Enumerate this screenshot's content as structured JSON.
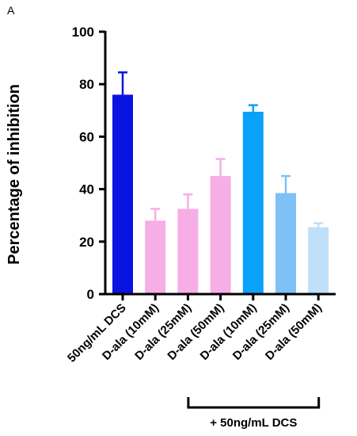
{
  "panel_label": "A",
  "chart_data": {
    "type": "bar",
    "title": "",
    "xlabel": "",
    "ylabel": "Percentage of inhibition",
    "ylim": [
      0,
      100
    ],
    "yticks": [
      "0",
      "20",
      "40",
      "60",
      "80",
      "100"
    ],
    "grid": false,
    "categories": [
      "50ng/mL DCS",
      "D-ala (10mM)",
      "D-ala (25mM)",
      "D-ala (50mM)",
      "D-ala (10mM)",
      "D-ala (25mM)",
      "D-ala (50mM)"
    ],
    "values": [
      76,
      28,
      32.5,
      45,
      69.5,
      38.5,
      25.5
    ],
    "error_upper": [
      84.5,
      32.5,
      38,
      51.5,
      72,
      45,
      27
    ],
    "colors": [
      "#0A14E0",
      "#F7AEE6",
      "#F7AEE6",
      "#F7AEE6",
      "#0AA2F8",
      "#7DC1F7",
      "#BFE0F8"
    ],
    "bracket": {
      "label": "+ 50ng/mL DCS",
      "from_category_index": 2,
      "to_category_index": 6
    }
  }
}
